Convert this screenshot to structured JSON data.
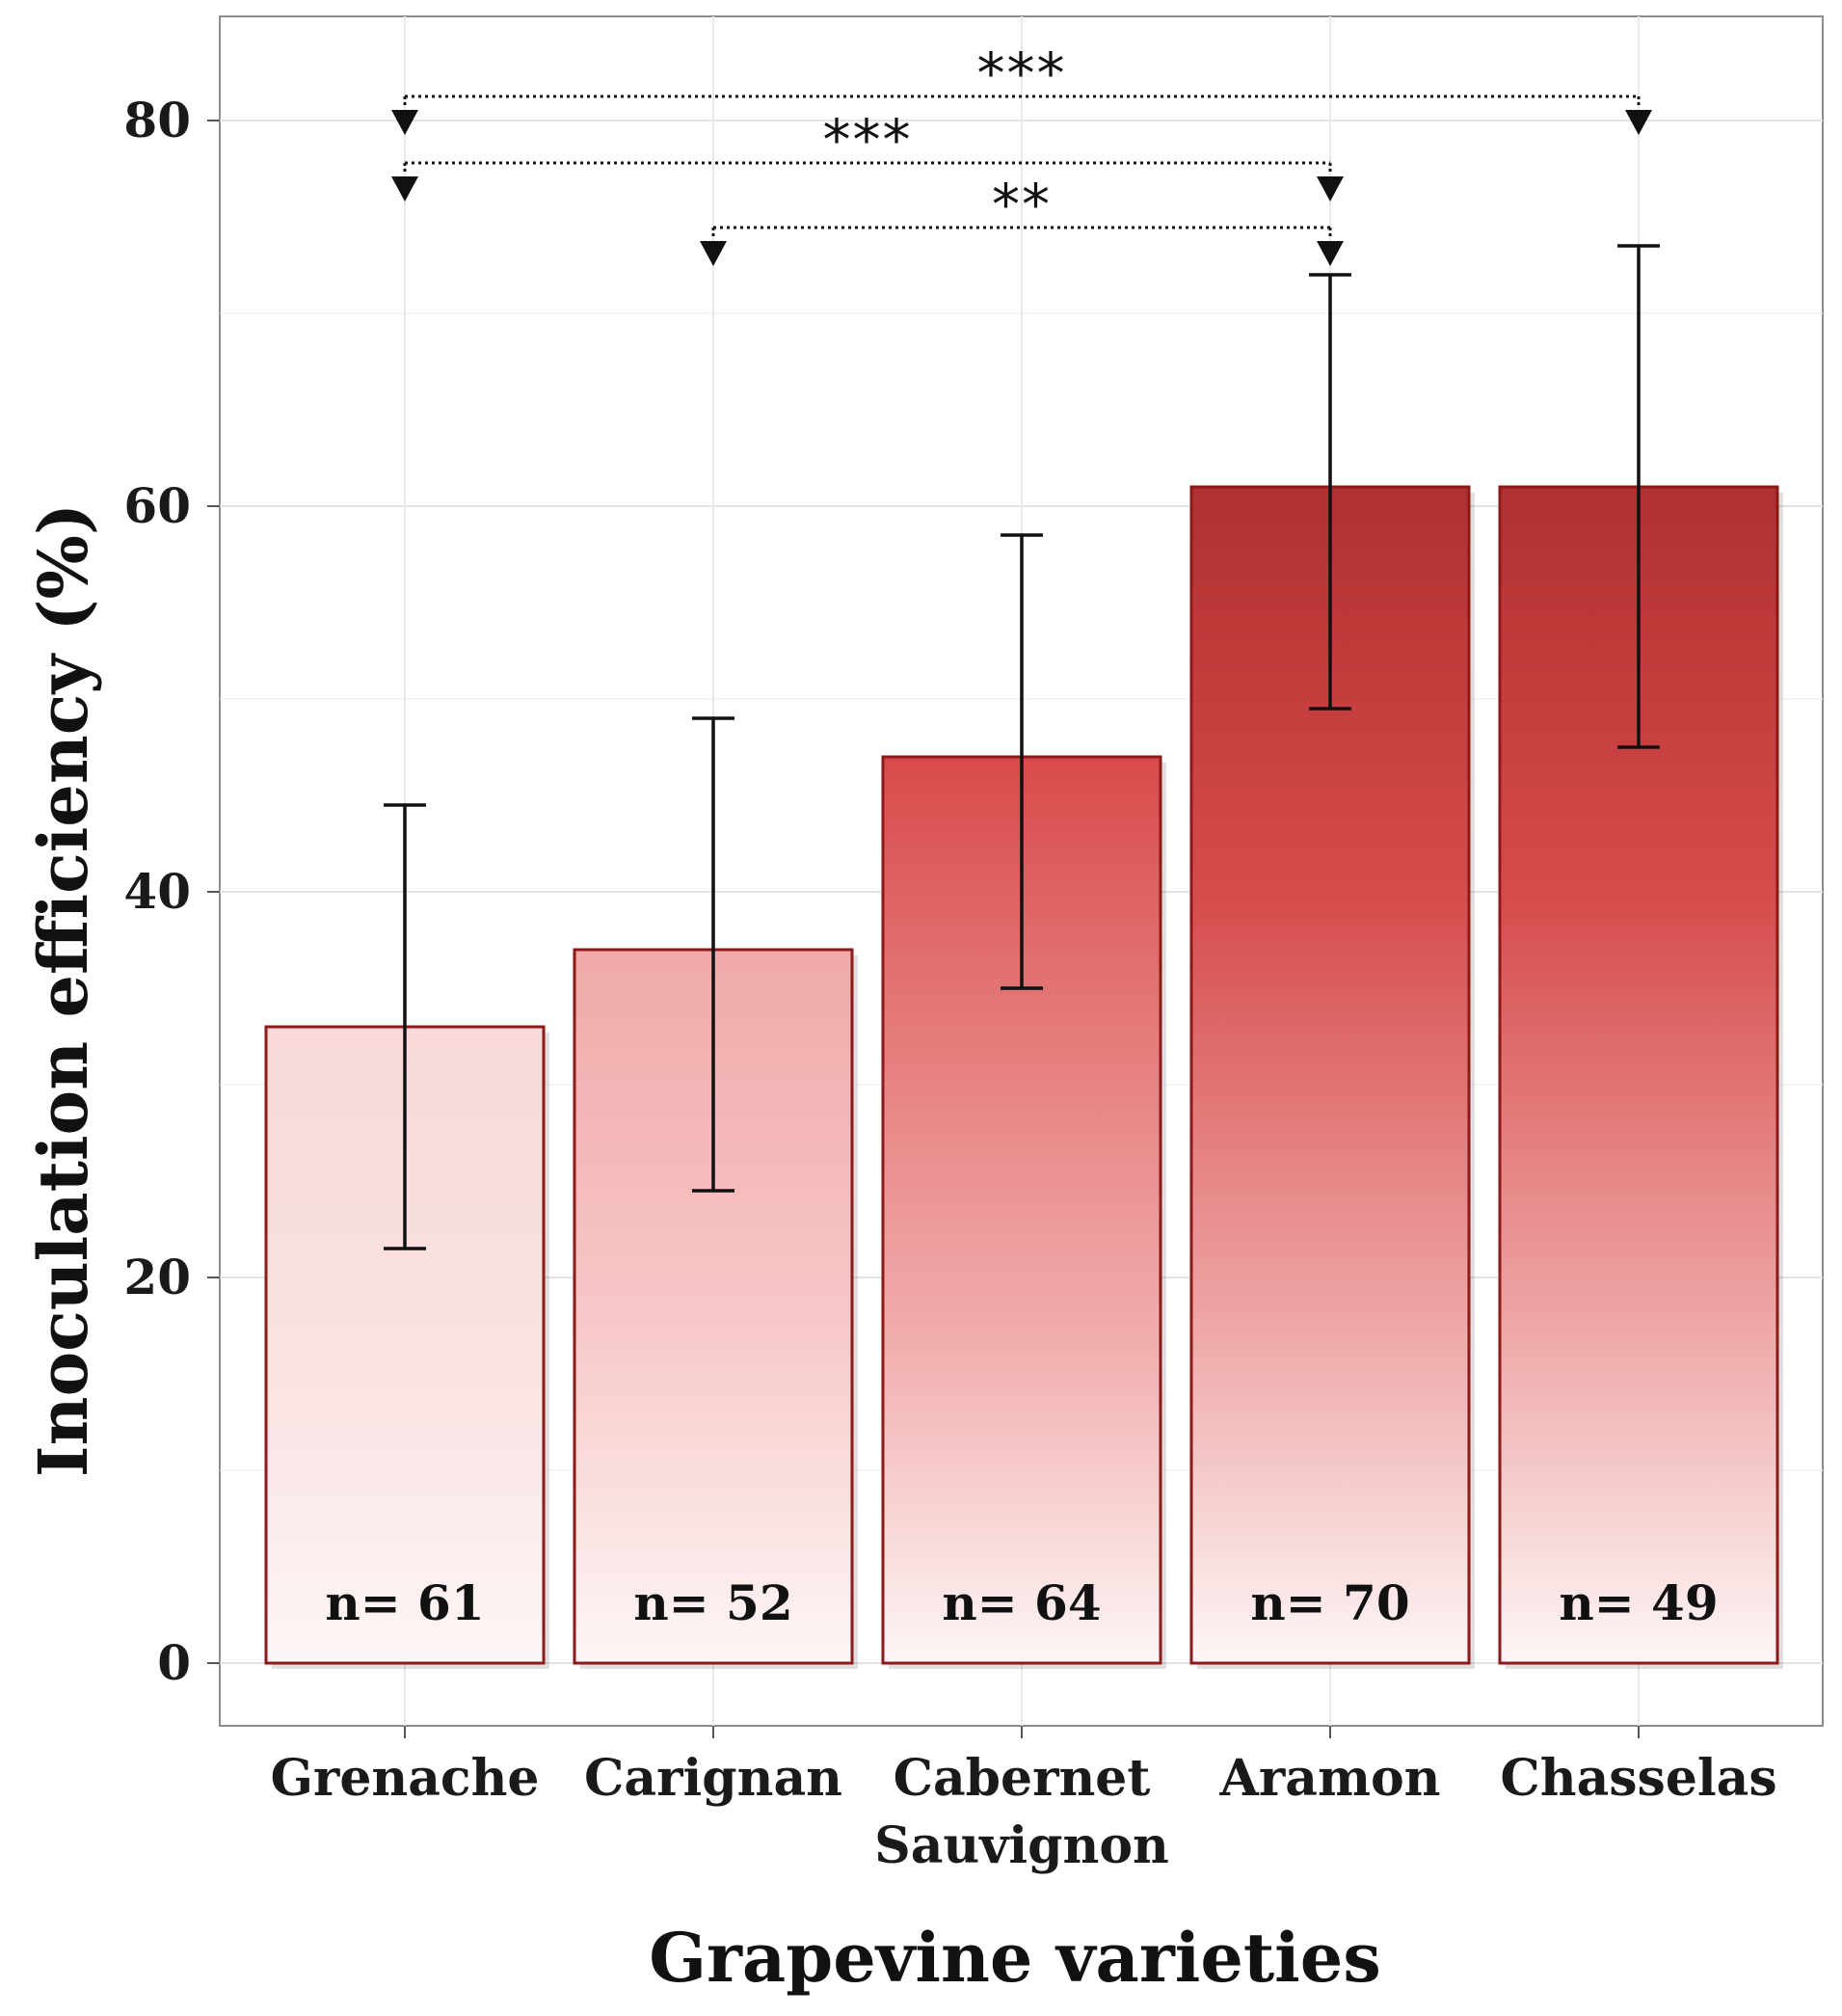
{
  "chart_data": {
    "type": "bar",
    "categories": [
      "Grenache",
      "Carignan",
      "Cabernet Sauvignon",
      "Aramon",
      "Chasselas"
    ],
    "category_lines": [
      [
        "Grenache"
      ],
      [
        "Carignan"
      ],
      [
        "Cabernet",
        "Sauvignon"
      ],
      [
        "Aramon"
      ],
      [
        "Chasselas"
      ]
    ],
    "values": [
      33,
      37,
      47,
      61,
      61
    ],
    "error_low": [
      21.5,
      24.5,
      35,
      49.5,
      47.5
    ],
    "error_high": [
      44.5,
      49,
      58.5,
      72,
      73.5
    ],
    "n_labels": [
      "n= 61",
      "n= 52",
      "n= 64",
      "n= 70",
      "n= 49"
    ],
    "xlabel": "Grapevine varieties",
    "ylabel": "Inoculation efficiency (%)",
    "ylim": [
      0,
      80
    ],
    "yticks": [
      0,
      20,
      40,
      60,
      80
    ],
    "grid": true,
    "colors": {
      "bar_light": "#fdf6f6",
      "bar_mid": "#e57a7a",
      "bar_dark": "#b0302f",
      "bar_edge": "#8b1a1a"
    },
    "significance": [
      {
        "from": 0,
        "to": 4,
        "label": "***"
      },
      {
        "from": 0,
        "to": 3,
        "label": "***"
      },
      {
        "from": 1,
        "to": 3,
        "label": "**"
      }
    ]
  }
}
